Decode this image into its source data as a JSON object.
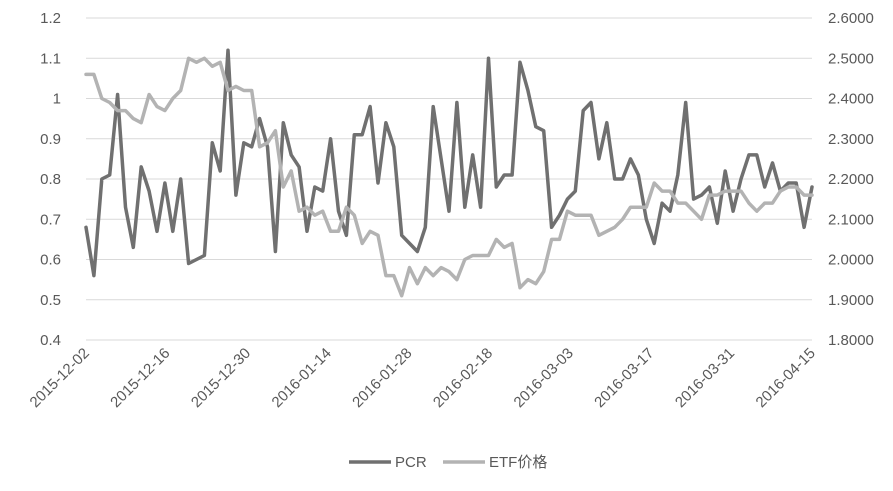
{
  "chart_data": {
    "type": "line",
    "title": "",
    "x_tick_labels": [
      "2015-12-02",
      "2015-12-16",
      "2015-12-30",
      "2016-01-14",
      "2016-01-28",
      "2016-02-18",
      "2016-03-03",
      "2016-03-17",
      "2016-03-31",
      "2016-04-15"
    ],
    "y_left": {
      "ticks": [
        "0.4",
        "0.5",
        "0.6",
        "0.7",
        "0.8",
        "0.9",
        "1",
        "1.1",
        "1.2"
      ],
      "ylim": [
        0.4,
        1.2
      ]
    },
    "y_right": {
      "ticks": [
        "1.8000",
        "1.9000",
        "2.0000",
        "2.1000",
        "2.2000",
        "2.3000",
        "2.4000",
        "2.5000",
        "2.6000"
      ],
      "ylim": [
        1.8,
        2.6
      ]
    },
    "grid": true,
    "legend_position": "bottom",
    "series": [
      {
        "name": "PCR",
        "axis": "left",
        "color": "#707070",
        "values": [
          0.68,
          0.56,
          0.8,
          0.81,
          1.01,
          0.73,
          0.63,
          0.83,
          0.77,
          0.67,
          0.79,
          0.67,
          0.8,
          0.59,
          0.6,
          0.61,
          0.89,
          0.82,
          1.12,
          0.76,
          0.89,
          0.88,
          0.95,
          0.88,
          0.62,
          0.94,
          0.86,
          0.83,
          0.67,
          0.78,
          0.77,
          0.9,
          0.72,
          0.66,
          0.91,
          0.91,
          0.98,
          0.79,
          0.94,
          0.88,
          0.66,
          0.64,
          0.62,
          0.68,
          0.98,
          0.85,
          0.72,
          0.99,
          0.73,
          0.86,
          0.73,
          1.1,
          0.78,
          0.81,
          0.81,
          1.09,
          1.02,
          0.93,
          0.92,
          0.68,
          0.71,
          0.75,
          0.77,
          0.97,
          0.99,
          0.85,
          0.94,
          0.8,
          0.8,
          0.85,
          0.81,
          0.7,
          0.64,
          0.74,
          0.72,
          0.81,
          0.99,
          0.75,
          0.76,
          0.78,
          0.69,
          0.82,
          0.72,
          0.8,
          0.86,
          0.86,
          0.78,
          0.84,
          0.77,
          0.79,
          0.79,
          0.68,
          0.78
        ]
      },
      {
        "name": "ETF价格",
        "axis": "right",
        "color": "#b3b3b3",
        "values": [
          2.46,
          2.46,
          2.4,
          2.39,
          2.37,
          2.37,
          2.35,
          2.34,
          2.41,
          2.38,
          2.37,
          2.4,
          2.42,
          2.5,
          2.49,
          2.5,
          2.48,
          2.49,
          2.42,
          2.43,
          2.42,
          2.42,
          2.28,
          2.29,
          2.32,
          2.18,
          2.22,
          2.12,
          2.13,
          2.11,
          2.12,
          2.07,
          2.07,
          2.13,
          2.11,
          2.04,
          2.07,
          2.06,
          1.96,
          1.96,
          1.91,
          1.98,
          1.94,
          1.98,
          1.96,
          1.98,
          1.97,
          1.95,
          2.0,
          2.01,
          2.01,
          2.01,
          2.05,
          2.03,
          2.04,
          1.93,
          1.95,
          1.94,
          1.97,
          2.05,
          2.05,
          2.12,
          2.11,
          2.11,
          2.11,
          2.06,
          2.07,
          2.08,
          2.1,
          2.13,
          2.13,
          2.13,
          2.19,
          2.17,
          2.17,
          2.14,
          2.14,
          2.12,
          2.1,
          2.16,
          2.16,
          2.17,
          2.17,
          2.17,
          2.14,
          2.12,
          2.14,
          2.14,
          2.17,
          2.18,
          2.18,
          2.16,
          2.16
        ]
      }
    ]
  }
}
